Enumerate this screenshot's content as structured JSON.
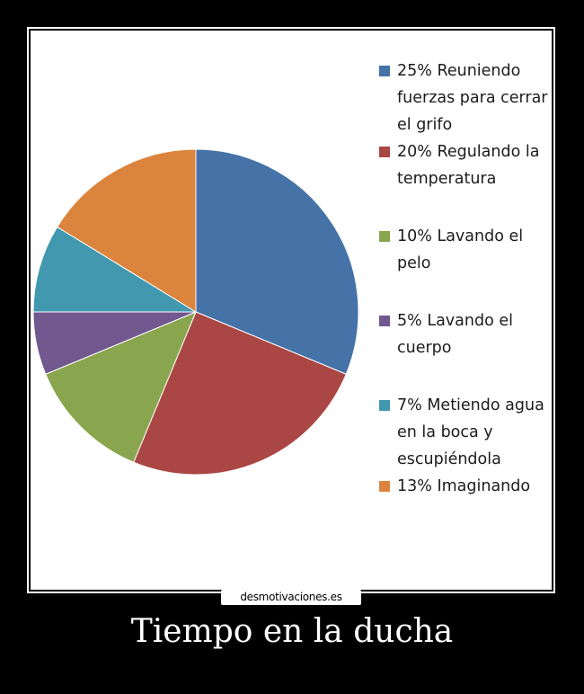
{
  "chart_data": {
    "type": "pie",
    "categories": [
      "Reuniendo fuerzas para cerrar el grifo",
      "Regulando la temperatura",
      "Lavando el pelo",
      "Lavando el cuerpo",
      "Metiendo agua en la boca y escupiéndola",
      "Imaginando"
    ],
    "values": [
      25,
      20,
      10,
      5,
      7,
      13
    ],
    "legend_labels": [
      "25% Reuniendo fuerzas para cerrar el grifo",
      "20% Regulando la temperatura",
      "10% Lavando el pelo",
      "5% Lavando el cuerpo",
      "7% Metiendo agua en la boca y escupiéndola",
      "13%  Imaginando"
    ],
    "colors": [
      "#4572A7",
      "#AA4643",
      "#89A54E",
      "#71588F",
      "#4198AF",
      "#DB843D"
    ],
    "legend_position": "right",
    "start_angle": "top",
    "direction": "clockwise"
  },
  "watermark": "desmotivaciones.es",
  "caption": "Tiempo en la ducha"
}
